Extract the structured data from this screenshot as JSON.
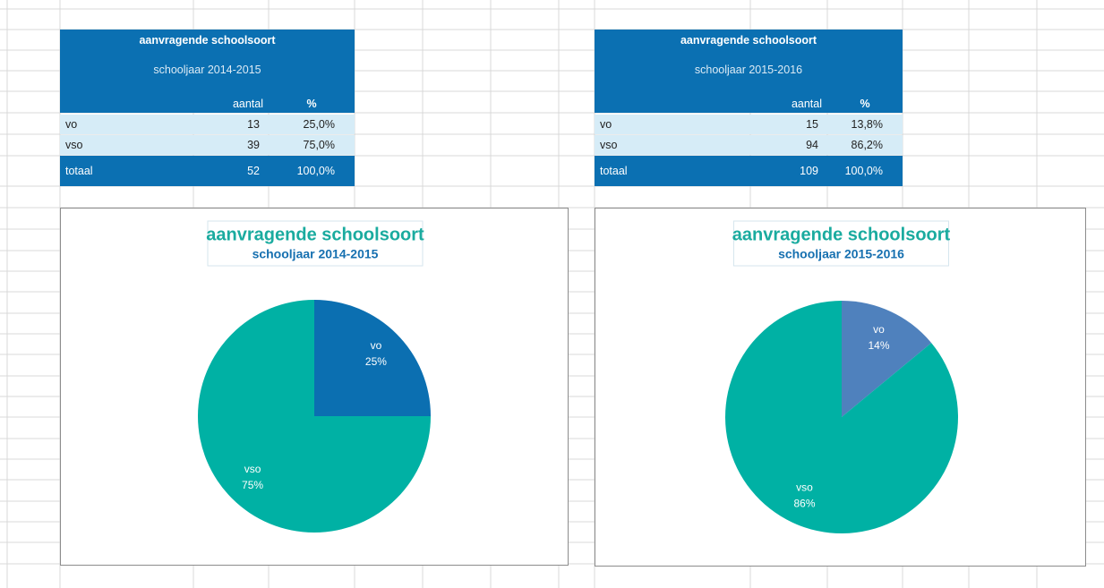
{
  "tables": [
    {
      "title": "aanvragende schoolsoort",
      "subtitle": "schooljaar 2014-2015",
      "columns": [
        "aantal",
        "%"
      ],
      "rows": [
        [
          "vo",
          "13",
          "25,0%"
        ],
        [
          "vso",
          "39",
          "75,0%"
        ]
      ],
      "total": [
        "totaal",
        "52",
        "100,0%"
      ]
    },
    {
      "title": "aanvragende schoolsoort",
      "subtitle": "schooljaar 2015-2016",
      "columns": [
        "aantal",
        "%"
      ],
      "rows": [
        [
          "vo",
          "15",
          "13,8%"
        ],
        [
          "vso",
          "94",
          "86,2%"
        ]
      ],
      "total": [
        "totaal",
        "109",
        "100,0%"
      ]
    }
  ],
  "chart_data": [
    {
      "type": "pie",
      "title": "aanvragende schoolsoort",
      "subtitle": "schooljaar 2014-2015",
      "categories": [
        "vo",
        "vso"
      ],
      "values": [
        25,
        75
      ],
      "value_labels": [
        "25%",
        "75%"
      ],
      "colors": [
        "#0b6fb1",
        "#00b1a4"
      ]
    },
    {
      "type": "pie",
      "title": "aanvragende schoolsoort",
      "subtitle": "schooljaar 2015-2016",
      "categories": [
        "vo",
        "vso"
      ],
      "values": [
        14,
        86
      ],
      "value_labels": [
        "14%",
        "86%"
      ],
      "colors": [
        "#4f81bd",
        "#00b1a4"
      ]
    }
  ]
}
